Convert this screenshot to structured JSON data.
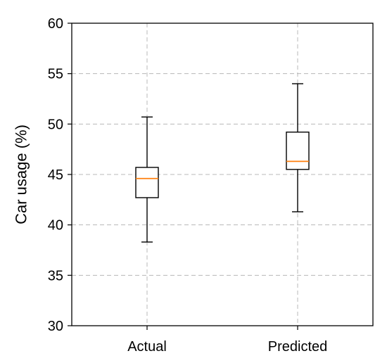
{
  "chart_data": {
    "type": "box",
    "title": "",
    "xlabel": "",
    "ylabel": "Car usage (%)",
    "ylim": [
      30,
      60
    ],
    "yticks": [
      30,
      35,
      40,
      45,
      50,
      55,
      60
    ],
    "grid": true,
    "categories": [
      "Actual",
      "Predicted"
    ],
    "boxes": [
      {
        "category": "Actual",
        "whisker_low": 38.3,
        "q1": 42.7,
        "median": 44.6,
        "q3": 45.7,
        "whisker_high": 50.7
      },
      {
        "category": "Predicted",
        "whisker_low": 41.3,
        "q1": 45.5,
        "median": 46.3,
        "q3": 49.2,
        "whisker_high": 54.0
      }
    ],
    "colors": {
      "box": "#000000",
      "median": "#ff7f0e",
      "grid": "#b8b8b8"
    }
  }
}
